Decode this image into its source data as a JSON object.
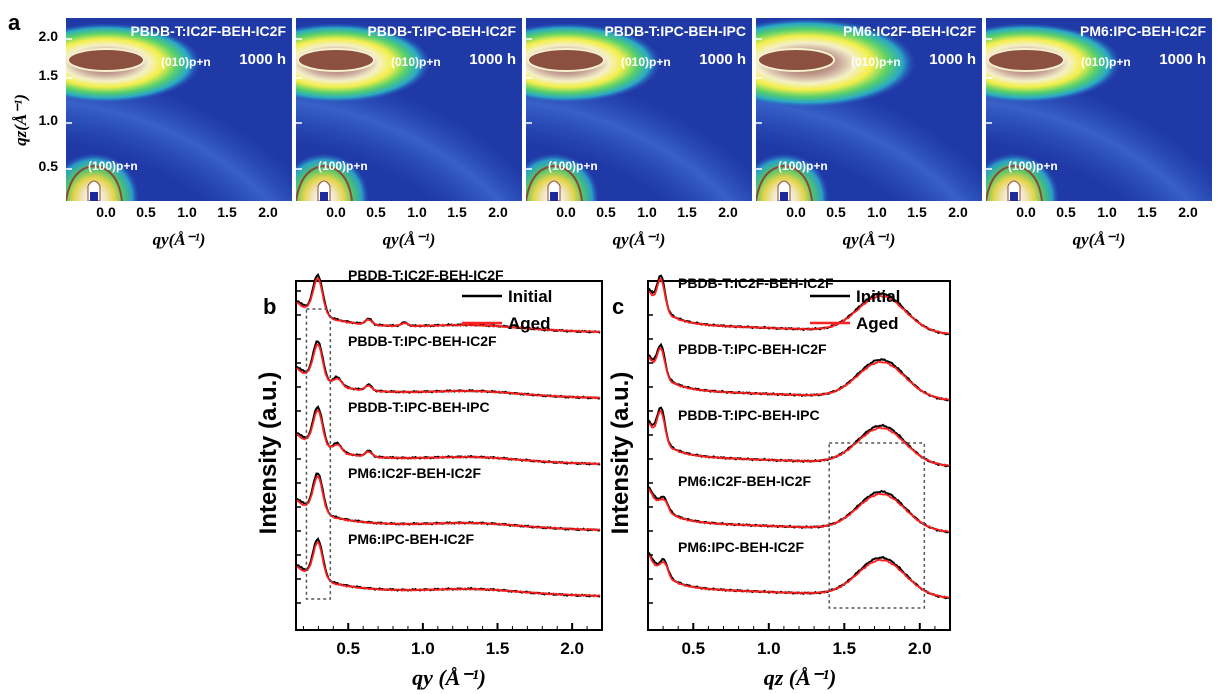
{
  "colors": {
    "initial": "#000000",
    "aged": "#ff2020",
    "map_bg": "#1f3aa6",
    "panel_text": "#ffffff"
  },
  "panel_a": {
    "label": "a",
    "y_axis_label": "qz(Å⁻¹)",
    "x_axis_label": "qy(Å⁻¹)",
    "y_ticks": [
      "0.5",
      "1.0",
      "1.5",
      "2.0"
    ],
    "x_ticks": [
      "0.0",
      "0.5",
      "1.0",
      "1.5",
      "2.0"
    ],
    "peak_high_label": "(010)p+n",
    "peak_low_label": "(100)p+n",
    "aging_label": "1000 h",
    "maps": [
      {
        "name": "PBDB-T:IC2F-BEH-IC2F"
      },
      {
        "name": "PBDB-T:IPC-BEH-IC2F"
      },
      {
        "name": "PBDB-T:IPC-BEH-IPC"
      },
      {
        "name": "PM6:IC2F-BEH-IC2F"
      },
      {
        "name": "PM6:IPC-BEH-IC2F"
      }
    ]
  },
  "chart_data": [
    {
      "panel": "b",
      "type": "line",
      "xlabel": "qy (Å⁻¹)",
      "ylabel": "Intensity (a.u.)",
      "xlim": [
        0.15,
        2.2
      ],
      "x_ticks": [
        "0.5",
        "1.0",
        "1.5",
        "2.0"
      ],
      "legend": [
        "Initial",
        "Aged"
      ],
      "legend_position": "top-right",
      "annotation": "dashed box around 0.2–0.4 Å⁻¹",
      "series": [
        {
          "name": "PBDB-T:IC2F-BEH-IC2F",
          "peaks_x": [
            0.29,
            0.63,
            0.87
          ],
          "baseline": 4.0
        },
        {
          "name": "PBDB-T:IPC-BEH-IC2F",
          "peaks_x": [
            0.29,
            0.42,
            0.63
          ],
          "baseline": 3.0
        },
        {
          "name": "PBDB-T:IPC-BEH-IPC",
          "peaks_x": [
            0.29,
            0.42,
            0.63
          ],
          "baseline": 2.0
        },
        {
          "name": "PM6:IC2F-BEH-IC2F",
          "peaks_x": [
            0.29
          ],
          "baseline": 1.0
        },
        {
          "name": "PM6:IPC-BEH-IC2F",
          "peaks_x": [
            0.29
          ],
          "baseline": 0.0
        }
      ]
    },
    {
      "panel": "c",
      "type": "line",
      "xlabel": "qz (Å⁻¹)",
      "ylabel": "Intensity (a.u.)",
      "xlim": [
        0.2,
        2.2
      ],
      "x_ticks": [
        "0.5",
        "1.0",
        "1.5",
        "2.0"
      ],
      "legend": [
        "Initial",
        "Aged"
      ],
      "legend_position": "top-right",
      "annotation": "dashed box around 1.4–2.05 Å⁻¹",
      "series": [
        {
          "name": "PBDB-T:IC2F-BEH-IC2F",
          "peaks_x": [
            0.28,
            1.74
          ],
          "baseline": 4.0
        },
        {
          "name": "PBDB-T:IPC-BEH-IC2F",
          "peaks_x": [
            0.28,
            1.74
          ],
          "baseline": 3.0
        },
        {
          "name": "PBDB-T:IPC-BEH-IPC",
          "peaks_x": [
            0.28,
            1.74
          ],
          "baseline": 2.0
        },
        {
          "name": "PM6:IC2F-BEH-IC2F",
          "peaks_x": [
            0.3,
            1.74
          ],
          "baseline": 1.0
        },
        {
          "name": "PM6:IPC-BEH-IC2F",
          "peaks_x": [
            0.3,
            1.74
          ],
          "baseline": 0.0
        }
      ]
    }
  ]
}
